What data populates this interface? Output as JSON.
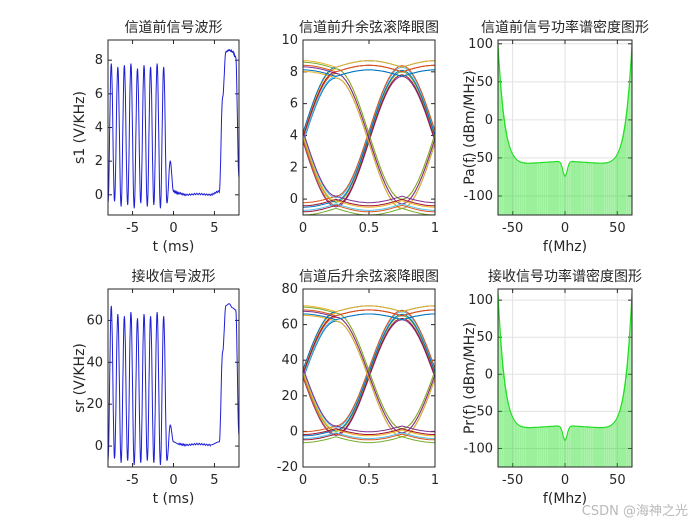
{
  "watermark": "CSDN @海神之光",
  "chart_data": [
    {
      "type": "line",
      "title": "信道前信号波形",
      "xlabel": "t (ms)",
      "ylabel": "s1  (V/KHz)",
      "xlim": [
        -8,
        8
      ],
      "ylim": [
        -1.2,
        9.2
      ],
      "xticks": [
        -5,
        0,
        5
      ],
      "yticks": [
        0,
        2,
        4,
        6,
        8
      ],
      "grid": false,
      "color": "#1f1fd6",
      "series": [
        {
          "x": [
            -8,
            -7.6,
            -7.2,
            -6.8,
            -6.4,
            -6.0,
            -5.6,
            -5.2,
            -4.8,
            -4.4,
            -4.0,
            -3.6,
            -3.2,
            -2.8,
            -2.4,
            -2.0,
            -1.6,
            -1.2,
            -0.8,
            -0.4,
            0.0,
            0.6,
            1.5,
            3.0,
            4.5,
            5.6,
            6.0,
            6.4,
            6.8,
            7.2,
            7.6,
            8.0
          ],
          "values": [
            -0.5,
            7.8,
            -0.4,
            7.6,
            -0.7,
            7.7,
            -0.6,
            7.8,
            -0.8,
            7.5,
            -0.5,
            7.7,
            -0.7,
            7.6,
            -0.6,
            7.8,
            -0.8,
            7.6,
            -0.5,
            2.0,
            0.2,
            0.1,
            0.0,
            0.05,
            0.0,
            0.2,
            5.8,
            8.5,
            8.6,
            8.5,
            8.2,
            1.0
          ]
        }
      ]
    },
    {
      "type": "line",
      "title": "信道前升余弦滚降眼图",
      "xlabel": "",
      "ylabel": "",
      "xlim": [
        0,
        1
      ],
      "ylim": [
        -1,
        10
      ],
      "xticks": [
        0,
        0.5,
        1
      ],
      "yticks": [
        0,
        2,
        4,
        6,
        8,
        10
      ],
      "grid": false,
      "eye": {
        "low": -0.2,
        "high": 8.0
      }
    },
    {
      "type": "line",
      "title": "信道前信号功率谱密度图形",
      "xlabel": "f(Mhz)",
      "ylabel": "Pa(f) (dBm/MHz)",
      "xlim": [
        -64,
        64
      ],
      "ylim": [
        -125,
        105
      ],
      "xticks": [
        -50,
        0,
        50
      ],
      "yticks": [
        -100,
        -50,
        0,
        50,
        100
      ],
      "grid": true,
      "color": "#22dd22",
      "envelope": {
        "edge_db": 100,
        "mid_db": -60,
        "center_dip_db": -80,
        "floor_db": -125
      }
    },
    {
      "type": "line",
      "title": "接收信号波形",
      "xlabel": "t (ms)",
      "ylabel": "sr  (V/KHz)",
      "xlim": [
        -8,
        8
      ],
      "ylim": [
        -10,
        75
      ],
      "xticks": [
        -5,
        0,
        5
      ],
      "yticks": [
        0,
        20,
        40,
        60
      ],
      "grid": false,
      "color": "#1f1fd6",
      "series": [
        {
          "x": [
            -8,
            -7.6,
            -7.2,
            -6.8,
            -6.4,
            -6.0,
            -5.6,
            -5.2,
            -4.8,
            -4.4,
            -4.0,
            -3.6,
            -3.2,
            -2.8,
            -2.4,
            -2.0,
            -1.6,
            -1.2,
            -0.8,
            -0.4,
            0.0,
            0.6,
            1.5,
            3.0,
            4.5,
            5.6,
            6.0,
            6.4,
            6.8,
            7.2,
            7.6,
            8.0
          ],
          "values": [
            -7,
            67,
            -6,
            63,
            -8,
            62,
            -7,
            64,
            -9,
            61,
            -8,
            63,
            -7,
            62,
            -8,
            64,
            -9,
            62,
            -7,
            10,
            2,
            1,
            0.5,
            1,
            0.5,
            2,
            45,
            67,
            68,
            66,
            65,
            5
          ]
        }
      ]
    },
    {
      "type": "line",
      "title": "信道后升余弦滚降眼图",
      "xlabel": "",
      "ylabel": "",
      "xlim": [
        0,
        1
      ],
      "ylim": [
        -20,
        80
      ],
      "xticks": [
        0,
        0.5,
        1
      ],
      "yticks": [
        -20,
        0,
        20,
        40,
        60,
        80
      ],
      "grid": false,
      "eye": {
        "low": 0,
        "high": 65
      }
    },
    {
      "type": "line",
      "title": "接收信号功率谱密度图形",
      "xlabel": "f(Mhz)",
      "ylabel": "Pr(f) (dBm/MHz)",
      "xlim": [
        -64,
        64
      ],
      "ylim": [
        -125,
        115
      ],
      "xticks": [
        -50,
        0,
        50
      ],
      "yticks": [
        -100,
        -50,
        0,
        50,
        100
      ],
      "grid": true,
      "color": "#22dd22",
      "envelope": {
        "edge_db": 110,
        "mid_db": -75,
        "center_dip_db": -95,
        "floor_db": -125
      }
    }
  ]
}
